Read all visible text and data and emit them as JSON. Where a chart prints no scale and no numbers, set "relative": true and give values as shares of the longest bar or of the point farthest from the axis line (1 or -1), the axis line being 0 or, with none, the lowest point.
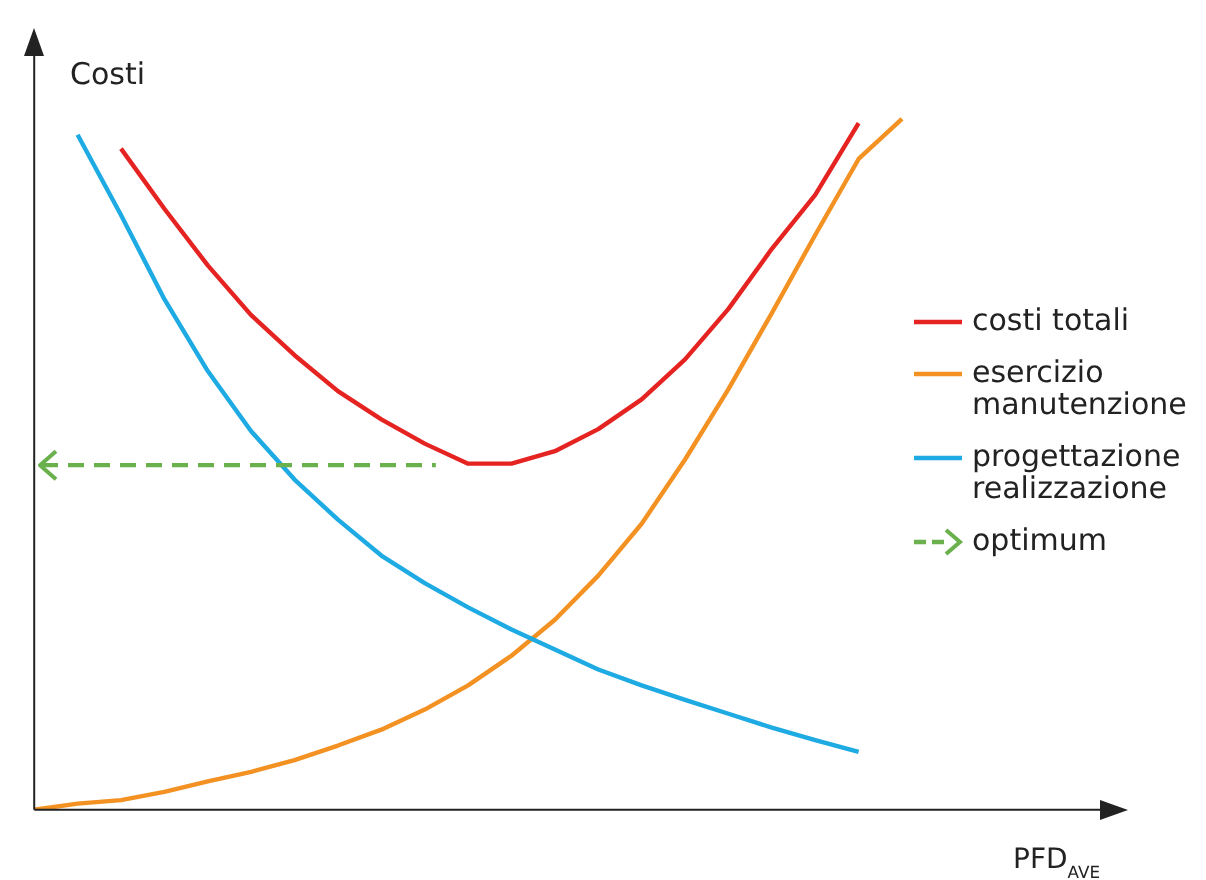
{
  "chart_data": {
    "type": "line",
    "relative": true,
    "xlabel": "PFD$_{AVE}$",
    "ylabel": "Costi",
    "grid": false,
    "legend": "right",
    "marker": "none",
    "categories": [
      null,
      null,
      null,
      null,
      null,
      null,
      null,
      null,
      null,
      null,
      null,
      null,
      null,
      null,
      null,
      null,
      null,
      null,
      null,
      null,
      null
    ],
    "series": [
      {
        "name": "costi totali",
        "color": "#e52321",
        "values": [
          null,
          null,
          0.957,
          0.87,
          0.788,
          0.716,
          0.658,
          0.606,
          0.565,
          0.53,
          0.501,
          0.501,
          0.519,
          0.551,
          0.594,
          0.652,
          0.725,
          0.812,
          0.89,
          0.994,
          null
        ]
      },
      {
        "name": "esercizio manutenzione",
        "color": "#f39223",
        "values": [
          0,
          0.009,
          0.014,
          0.026,
          0.041,
          0.055,
          0.072,
          0.093,
          0.116,
          0.145,
          0.18,
          0.223,
          0.275,
          0.339,
          0.414,
          0.507,
          0.609,
          0.719,
          0.832,
          0.942,
          1
        ]
      },
      {
        "name": "progettazione realizzazione",
        "color": "#1eaae2",
        "values": [
          null,
          0.977,
          0.861,
          0.739,
          0.635,
          0.548,
          0.478,
          0.42,
          0.368,
          0.328,
          0.293,
          0.261,
          0.232,
          0.203,
          0.18,
          0.159,
          0.139,
          0.119,
          0.101,
          0.084,
          null
        ]
      }
    ],
    "ref_lines": [
      {
        "axis": "y",
        "value": 0.499,
        "label": "optimum",
        "color": "#6ab04c",
        "line_style": "dashed"
      }
    ]
  }
}
